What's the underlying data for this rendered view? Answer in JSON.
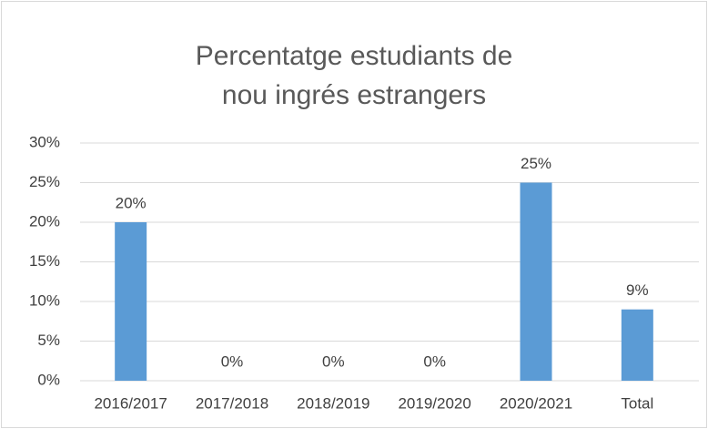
{
  "chart_data": {
    "type": "bar",
    "title": "Percentatge estudiants de nou ingrés estrangers",
    "categories": [
      "2016/2017",
      "2017/2018",
      "2018/2019",
      "2019/2020",
      "2020/2021",
      "Total"
    ],
    "values": [
      20,
      0,
      0,
      0,
      25,
      9
    ],
    "value_labels": [
      "20%",
      "0%",
      "0%",
      "0%",
      "25%",
      "9%"
    ],
    "color": "#5b9bd5",
    "ylim": [
      0,
      30
    ],
    "yticks": [
      {
        "value": 0,
        "label": "0%"
      },
      {
        "value": 5,
        "label": "5%"
      },
      {
        "value": 10,
        "label": "10%"
      },
      {
        "value": 15,
        "label": "15%"
      },
      {
        "value": 20,
        "label": "20%"
      },
      {
        "value": 25,
        "label": "25%"
      },
      {
        "value": 30,
        "label": "30%"
      }
    ],
    "grid": true
  }
}
